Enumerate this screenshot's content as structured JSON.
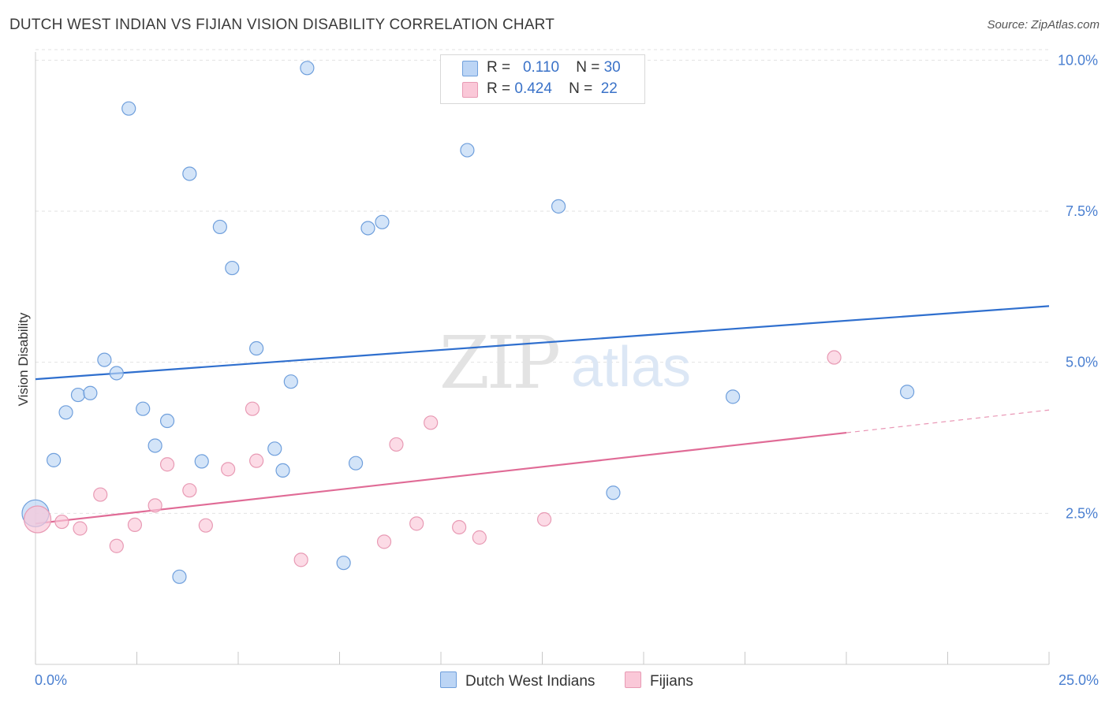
{
  "header": {
    "title": "DUTCH WEST INDIAN VS FIJIAN VISION DISABILITY CORRELATION CHART",
    "source": "Source: ZipAtlas.com"
  },
  "watermark": {
    "zip": "ZIP",
    "atlas": "atlas"
  },
  "legend": {
    "rows": [
      {
        "r_label": "R =",
        "r_value": "0.110",
        "n_label": "N =",
        "n_value": "30"
      },
      {
        "r_label": "R =",
        "r_value": "0.424",
        "n_label": "N =",
        "n_value": "22"
      }
    ]
  },
  "bottom_legend": {
    "series1": "Dutch West Indians",
    "series2": "Fijians"
  },
  "colors": {
    "series1_fill": "#bcd5f5",
    "series1_stroke": "#6f9fdc",
    "series1_line": "#2f6fce",
    "series2_fill": "#fac8d8",
    "series2_stroke": "#e89ab4",
    "series2_line": "#e06b96",
    "tick_text": "#4a7fd0",
    "grid": "#e2e2e2"
  },
  "chart_data": {
    "type": "scatter",
    "title": "DUTCH WEST INDIAN VS FIJIAN VISION DISABILITY CORRELATION CHART",
    "xlabel": "",
    "ylabel": "Vision Disability",
    "xlim": [
      0,
      25
    ],
    "ylim": [
      0,
      10.2
    ],
    "x_tick_labels": [
      "0.0%",
      "25.0%"
    ],
    "y_ticks": [
      {
        "value": 2.5,
        "label": "2.5%"
      },
      {
        "value": 5.0,
        "label": "5.0%"
      },
      {
        "value": 7.5,
        "label": "7.5%"
      },
      {
        "value": 10.0,
        "label": "10.0%"
      }
    ],
    "series": [
      {
        "name": "Dutch West Indians",
        "R": 0.11,
        "N": 30,
        "trend": {
          "x0": 0,
          "y0": 4.72,
          "x1": 25,
          "y1": 5.93,
          "solid_until": 25
        },
        "points": [
          {
            "x": 0.0,
            "y": 2.5,
            "big": true
          },
          {
            "x": 0.45,
            "y": 3.38
          },
          {
            "x": 0.75,
            "y": 4.17
          },
          {
            "x": 1.05,
            "y": 4.46
          },
          {
            "x": 1.35,
            "y": 4.49
          },
          {
            "x": 1.7,
            "y": 5.04
          },
          {
            "x": 2.0,
            "y": 4.82
          },
          {
            "x": 2.3,
            "y": 9.2
          },
          {
            "x": 2.65,
            "y": 4.23
          },
          {
            "x": 2.95,
            "y": 3.62
          },
          {
            "x": 3.25,
            "y": 4.03
          },
          {
            "x": 3.55,
            "y": 1.45
          },
          {
            "x": 3.8,
            "y": 8.12
          },
          {
            "x": 4.1,
            "y": 3.36
          },
          {
            "x": 4.55,
            "y": 7.24
          },
          {
            "x": 4.85,
            "y": 6.56
          },
          {
            "x": 5.45,
            "y": 5.23
          },
          {
            "x": 5.9,
            "y": 3.57
          },
          {
            "x": 6.1,
            "y": 3.21
          },
          {
            "x": 6.3,
            "y": 4.68
          },
          {
            "x": 6.7,
            "y": 9.87
          },
          {
            "x": 7.6,
            "y": 1.68
          },
          {
            "x": 7.9,
            "y": 3.33
          },
          {
            "x": 8.2,
            "y": 7.22
          },
          {
            "x": 8.55,
            "y": 7.32
          },
          {
            "x": 10.65,
            "y": 8.51
          },
          {
            "x": 12.9,
            "y": 7.58
          },
          {
            "x": 14.25,
            "y": 2.84
          },
          {
            "x": 17.2,
            "y": 4.43
          },
          {
            "x": 21.5,
            "y": 4.51
          }
        ]
      },
      {
        "name": "Fijians",
        "R": 0.424,
        "N": 22,
        "trend": {
          "x0": 0,
          "y0": 2.33,
          "x1": 25,
          "y1": 4.21,
          "solid_until": 20
        },
        "points": [
          {
            "x": 0.05,
            "y": 2.4,
            "big": true
          },
          {
            "x": 0.65,
            "y": 2.36
          },
          {
            "x": 1.1,
            "y": 2.25
          },
          {
            "x": 1.6,
            "y": 2.81
          },
          {
            "x": 2.0,
            "y": 1.96
          },
          {
            "x": 2.45,
            "y": 2.31
          },
          {
            "x": 2.95,
            "y": 2.63
          },
          {
            "x": 3.25,
            "y": 3.31
          },
          {
            "x": 3.8,
            "y": 2.88
          },
          {
            "x": 4.2,
            "y": 2.3
          },
          {
            "x": 4.75,
            "y": 3.23
          },
          {
            "x": 5.35,
            "y": 4.23
          },
          {
            "x": 5.45,
            "y": 3.37
          },
          {
            "x": 6.55,
            "y": 1.73
          },
          {
            "x": 8.6,
            "y": 2.03
          },
          {
            "x": 8.9,
            "y": 3.64
          },
          {
            "x": 9.4,
            "y": 2.33
          },
          {
            "x": 9.75,
            "y": 4.0
          },
          {
            "x": 10.45,
            "y": 2.27
          },
          {
            "x": 10.95,
            "y": 2.1
          },
          {
            "x": 12.55,
            "y": 2.4
          },
          {
            "x": 19.7,
            "y": 5.08
          }
        ]
      }
    ]
  }
}
